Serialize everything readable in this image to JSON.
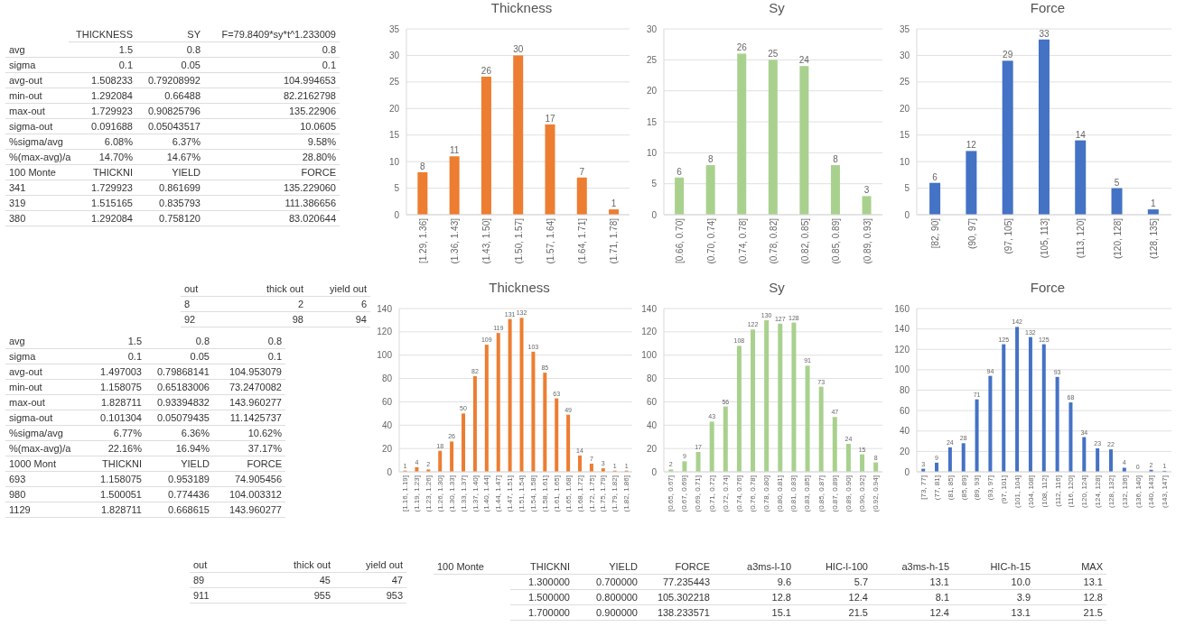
{
  "chart_data": [
    {
      "type": "other",
      "annotations": [
        "THICKNESS",
        "SY",
        "F=79.8409*sy*t^1.233009",
        "avg",
        "1.5",
        "0.8",
        "0.8",
        "sigma",
        "0.1",
        "0.05",
        "0.1",
        "avg-out",
        "1.508233",
        "0.79208992",
        "104.994653",
        "min-out",
        "1.292084",
        "0.66488",
        "82.2162798",
        "max-out",
        "1.729923",
        "0.90825796",
        "135.22906",
        "sigma-out",
        "0.091688",
        "0.05043517",
        "10.0605",
        "%sigma/avg",
        "6.08%",
        "6.37%",
        "9.58%",
        "%(max-avg)/a",
        "14.70%",
        "14.67%",
        "28.80%",
        "100 Monte",
        "THICKNI",
        "YIELD",
        "FORCE",
        "341",
        "1.729923",
        "0.861699",
        "135.229060",
        "319",
        "1.515165",
        "0.835793",
        "111.386656",
        "380",
        "1.292084",
        "0.758120",
        "83.020644"
      ]
    },
    {
      "type": "bar",
      "title": "Thickness",
      "categories": [
        "[1.29, 1.36]",
        "(1.36, 1.43]",
        "(1.43, 1.50]",
        "(1.50, 1.57]",
        "(1.57, 1.64]",
        "(1.64, 1.71]",
        "(1.71, 1.78]"
      ],
      "values": [
        8,
        11,
        26,
        30,
        17,
        7,
        1
      ],
      "color": "#ed7d31",
      "ylim": [
        0,
        35
      ],
      "yticks": [
        0,
        5,
        10,
        15,
        20,
        25,
        30,
        35
      ],
      "grid": "y",
      "data_labels": true
    },
    {
      "type": "bar",
      "title": "Sy",
      "categories": [
        "[0.66, 0.70]",
        "(0.70, 0.74]",
        "(0.74, 0.78]",
        "(0.78, 0.82]",
        "(0.82, 0.85]",
        "(0.85, 0.89]",
        "(0.89, 0.93]"
      ],
      "values": [
        6,
        8,
        26,
        25,
        24,
        8,
        3
      ],
      "color": "#a9d18e",
      "ylim": [
        0,
        30
      ],
      "yticks": [
        0,
        5,
        10,
        15,
        20,
        25,
        30
      ],
      "grid": "y",
      "data_labels": true
    },
    {
      "type": "bar",
      "title": "Force",
      "categories": [
        "[82, 90]",
        "(90, 97]",
        "(97, 105]",
        "(105, 113]",
        "(113, 120]",
        "(120, 128]",
        "(128, 135]"
      ],
      "values": [
        6,
        12,
        29,
        33,
        14,
        5,
        1
      ],
      "color": "#4472c4",
      "ylim": [
        0,
        35
      ],
      "yticks": [
        0,
        5,
        10,
        15,
        20,
        25,
        30,
        35
      ],
      "grid": "y",
      "data_labels": true
    },
    {
      "type": "other",
      "annotations": [
        "out",
        "thick out",
        "yield out",
        "8",
        "2",
        "6",
        "92",
        "98",
        "94"
      ]
    },
    {
      "type": "other",
      "annotations": [
        "avg",
        "1.5",
        "0.8",
        "0.8",
        "sigma",
        "0.1",
        "0.05",
        "0.1",
        "avg-out",
        "1.497003",
        "0.79868141",
        "104.953079",
        "min-out",
        "1.158075",
        "0.65183006",
        "73.2470082",
        "max-out",
        "1.828711",
        "0.93394832",
        "143.960277",
        "sigma-out",
        "0.101304",
        "0.05079435",
        "11.1425737",
        "%sigma/avg",
        "6.77%",
        "6.36%",
        "10.62%",
        "%(max-avg)/a",
        "22.16%",
        "16.94%",
        "37.17%",
        "1000 Mont",
        "THICKNI",
        "YIELD",
        "FORCE",
        "693",
        "1.158075",
        "0.953189",
        "74.905456",
        "980",
        "1.500051",
        "0.774436",
        "104.003312",
        "1129",
        "1.828711",
        "0.668615",
        "143.960277"
      ]
    },
    {
      "type": "bar",
      "title": "Thickness",
      "categories": [
        "[1.16, 1.19]",
        "(1.19, 1.23]",
        "(1.23, 1.26]",
        "(1.26, 1.30]",
        "(1.30, 1.33]",
        "(1.33, 1.37]",
        "(1.37, 1.40]",
        "(1.40, 1.44]",
        "(1.44, 1.47]",
        "(1.47, 1.51]",
        "(1.51, 1.54]",
        "(1.54, 1.58]",
        "(1.58, 1.61]",
        "(1.61, 1.65]",
        "(1.65, 1.68]",
        "(1.68, 1.72]",
        "(1.72, 1.75]",
        "(1.75, 1.79]",
        "(1.79, 1.82]",
        "(1.82, 1.86]"
      ],
      "values": [
        1,
        4,
        2,
        18,
        26,
        50,
        82,
        109,
        119,
        131,
        132,
        103,
        85,
        63,
        49,
        14,
        7,
        3,
        1,
        1
      ],
      "color": "#ed7d31",
      "ylim": [
        0,
        140
      ],
      "yticks": [
        0,
        20,
        40,
        60,
        80,
        100,
        120,
        140
      ],
      "grid": "y",
      "data_labels": true
    },
    {
      "type": "bar",
      "title": "Sy",
      "categories": [
        "[0.65, 0.67]",
        "(0.67, 0.69]",
        "(0.69, 0.71]",
        "(0.71, 0.72]",
        "(0.72, 0.74]",
        "(0.74, 0.76]",
        "(0.76, 0.78]",
        "(0.78, 0.80]",
        "(0.80, 0.81]",
        "(0.81, 0.83]",
        "(0.83, 0.85]",
        "(0.85, 0.87]",
        "(0.87, 0.89]",
        "(0.89, 0.90]",
        "(0.90, 0.92]",
        "(0.92, 0.94]"
      ],
      "values": [
        2,
        9,
        17,
        43,
        56,
        108,
        122,
        130,
        127,
        128,
        91,
        73,
        47,
        24,
        15,
        8
      ],
      "color": "#a9d18e",
      "ylim": [
        0,
        140
      ],
      "yticks": [
        0,
        20,
        40,
        60,
        80,
        100,
        120,
        140
      ],
      "grid": "y",
      "data_labels": true
    },
    {
      "type": "bar",
      "title": "Force",
      "categories": [
        "[73, 77]",
        "(77, 81]",
        "(81, 85]",
        "(85, 89]",
        "(89, 93]",
        "(93, 97]",
        "(97, 101]",
        "(101, 104]",
        "(104, 108]",
        "(108, 112]",
        "(112, 116]",
        "(116, 120]",
        "(120, 124]",
        "(124, 128]",
        "(128, 132]",
        "(132, 136]",
        "(136, 140]",
        "(140, 143]",
        "(143, 147]"
      ],
      "values": [
        3,
        9,
        24,
        28,
        71,
        94,
        125,
        142,
        132,
        125,
        93,
        68,
        34,
        23,
        22,
        4,
        0,
        2,
        1
      ],
      "color": "#4472c4",
      "ylim": [
        0,
        160
      ],
      "yticks": [
        0,
        20,
        40,
        60,
        80,
        100,
        120,
        140,
        160
      ],
      "grid": "y",
      "data_labels": true
    },
    {
      "type": "other",
      "annotations": [
        "out",
        "thick out",
        "yield out",
        "89",
        "45",
        "47",
        "911",
        "955",
        "953"
      ]
    },
    {
      "type": "other",
      "annotations": [
        "100 Monte",
        "THICKNI",
        "YIELD",
        "FORCE",
        "a3ms-l-10",
        "HIC-l-100",
        "a3ms-h-15",
        "HIC-h-15",
        "MAX",
        "1.300000",
        "0.700000",
        "77.235443",
        "9.6",
        "5.7",
        "13.1",
        "10.0",
        "13.1",
        "1.500000",
        "0.800000",
        "105.302218",
        "12.8",
        "12.4",
        "8.1",
        "3.9",
        "12.8",
        "1.700000",
        "0.900000",
        "138.233571",
        "15.1",
        "21.5",
        "12.4",
        "13.1",
        "21.5"
      ]
    }
  ]
}
